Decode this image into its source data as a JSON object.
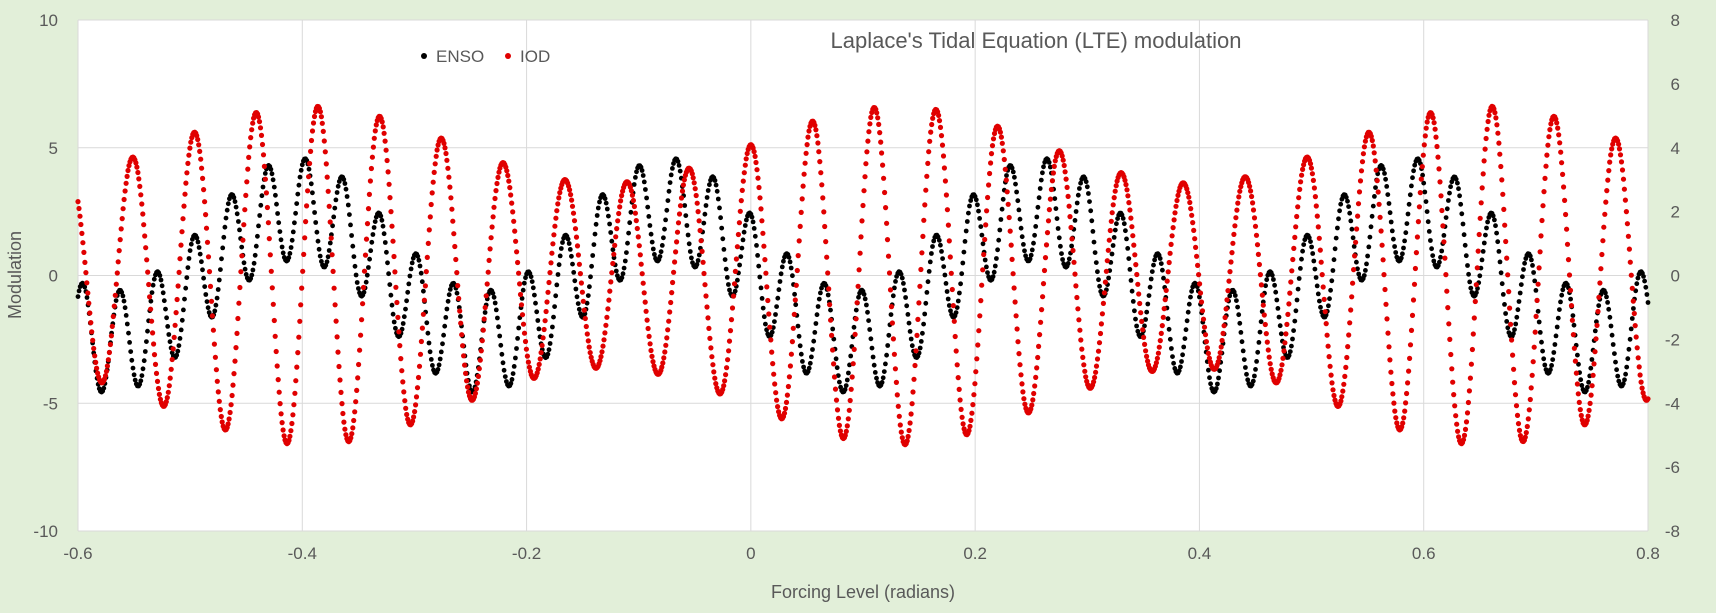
{
  "chart_data": {
    "type": "scatter",
    "title": "Laplace's Tidal Equation (LTE) modulation",
    "xlabel": "Forcing Level (radians)",
    "ylabel": "Modulation",
    "xlim": [
      -0.6,
      0.8
    ],
    "ylim": [
      -10,
      10
    ],
    "y2lim": [
      -8,
      8
    ],
    "x_ticks": [
      -0.6,
      -0.4,
      -0.2,
      0,
      0.2,
      0.4,
      0.6,
      0.8
    ],
    "x_tick_labels": [
      "-0.6",
      "-0.4",
      "-0.2",
      "0",
      "0.2",
      "0.4",
      "0.6",
      "0.8"
    ],
    "y_ticks": [
      -10,
      -5,
      0,
      5,
      10
    ],
    "y_tick_labels": [
      "-10",
      "-5",
      "0",
      "5",
      "10"
    ],
    "y2_ticks": [
      -8,
      -6,
      -4,
      -2,
      0,
      2,
      4,
      6,
      8
    ],
    "y2_tick_labels": [
      "-8",
      "-6",
      "-4",
      "-2",
      "0",
      "2",
      "4",
      "6",
      "8"
    ],
    "grid": true,
    "legend_position": "top-left",
    "series": [
      {
        "name": "ENSO",
        "axis": "left",
        "color": "#000000",
        "model": {
          "slow_amplitude": 2.6,
          "slow_frequency": 19.0,
          "slow_phase": -3.3,
          "fast_amplitude": 2.0,
          "fast_frequency": 190.0,
          "fast_phase": 1.66,
          "x_start": -0.6,
          "x_end": 0.8
        }
      },
      {
        "name": "IOD",
        "axis": "right",
        "color": "#e00000",
        "model": {
          "offset": 0.0,
          "envelope_amplitude": 4.1,
          "envelope_frequency": 114.0,
          "envelope_phase": 1.6,
          "envelope_mod": 1.2,
          "envelope_mod_frequency": 12.0,
          "x_start": -0.6,
          "x_end": 0.8
        }
      }
    ]
  }
}
